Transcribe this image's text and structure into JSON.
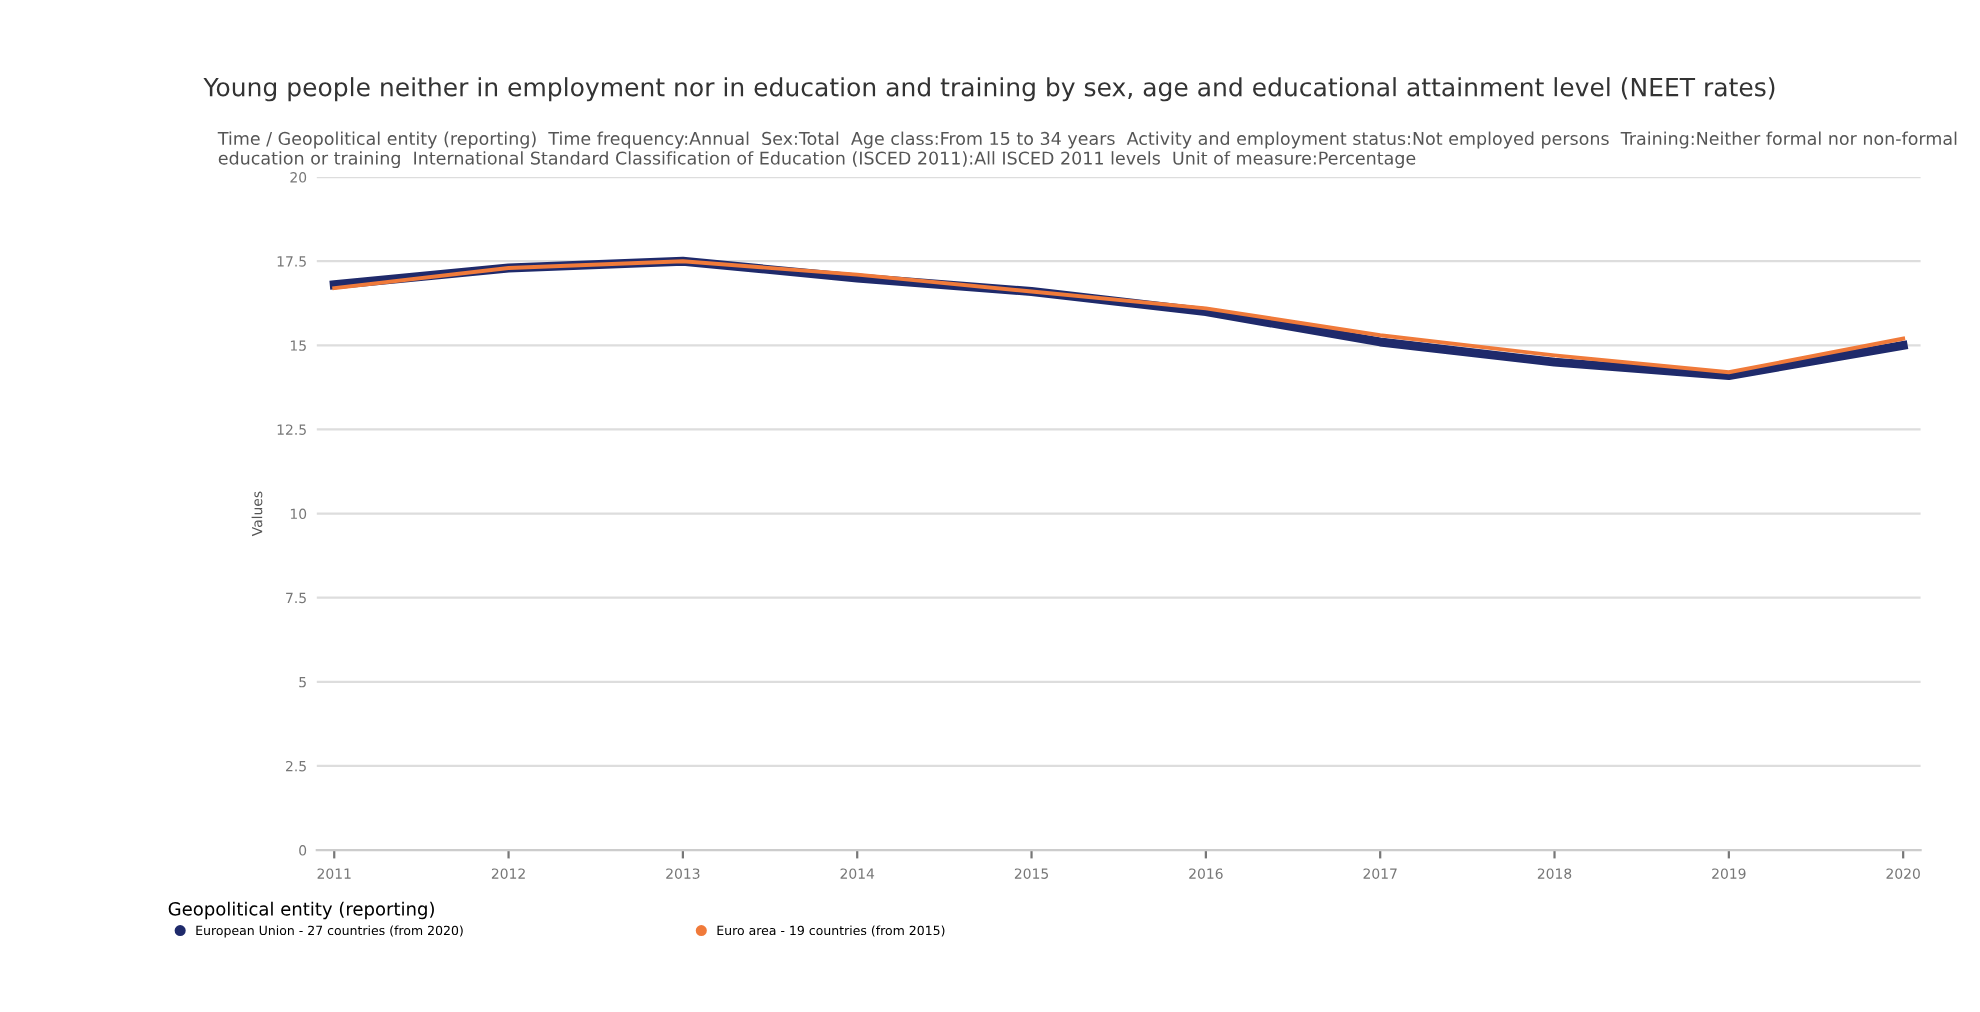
{
  "chart_data": {
    "type": "line",
    "title": "Young people neither in employment nor in education and training by sex, age and educational attainment level (NEET rates)",
    "subtitle": "Time / Geopolitical entity (reporting)  Time frequency:Annual  Sex:Total  Age class:From 15 to 34 years  Activity and employment status:Not employed persons  Training:Neither formal nor non-formal education or training  International Standard Classification of Education (ISCED 2011):All ISCED 2011 levels  Unit of measure:Percentage",
    "ylabel": "Values",
    "legend_title": "Geopolitical entity (reporting)",
    "categories": [
      "2011",
      "2012",
      "2013",
      "2014",
      "2015",
      "2016",
      "2017",
      "2018",
      "2019",
      "2020"
    ],
    "series": [
      {
        "name": "European Union - 27 countries (from 2020)",
        "color": "#1f2a6b",
        "values": [
          16.8,
          17.3,
          17.5,
          17.0,
          16.6,
          16.0,
          15.1,
          14.5,
          14.1,
          15.0
        ]
      },
      {
        "name": "Euro area - 19 countries (from 2015)",
        "color": "#f07a3a",
        "values": [
          16.7,
          17.3,
          17.5,
          17.1,
          16.6,
          16.1,
          15.3,
          14.7,
          14.2,
          15.2
        ]
      }
    ],
    "ylim": [
      0,
      20
    ],
    "yticks": [
      0,
      2.5,
      5,
      7.5,
      10,
      12.5,
      15,
      17.5,
      20
    ],
    "grid": "y",
    "legend": "bottom left",
    "marker": "none",
    "line_style": "solid"
  }
}
